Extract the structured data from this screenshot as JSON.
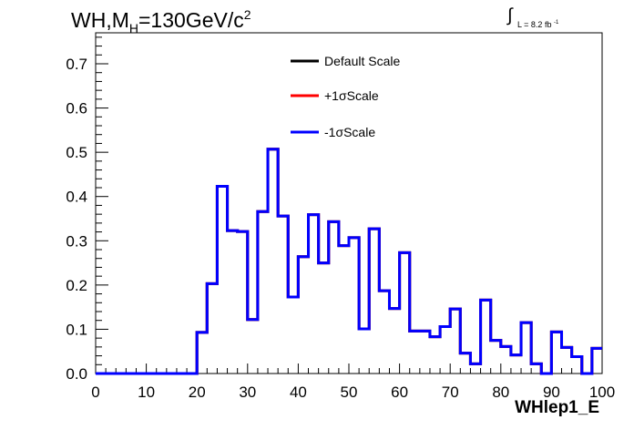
{
  "title": {
    "prefix": "WH,M",
    "sub": "H",
    "main": "=130GeV/c",
    "sup": "2"
  },
  "luminosity": {
    "symbol": "∫",
    "text": "L = 8.2 fb",
    "sup": "-1"
  },
  "legend": [
    {
      "label": "Default Scale",
      "color": "#000000"
    },
    {
      "label": "+1σScale",
      "color": "#ff0000"
    },
    {
      "label": "-1σScale",
      "color": "#0000ff"
    }
  ],
  "chart_data": {
    "type": "line",
    "style": "histogram-step",
    "xlabel": "WHlep1_E",
    "ylabel": "",
    "xlim": [
      0,
      100
    ],
    "ylim": [
      0,
      0.77
    ],
    "x_ticks": [
      0,
      10,
      20,
      30,
      40,
      50,
      60,
      70,
      80,
      90,
      100
    ],
    "y_ticks": [
      0.0,
      0.1,
      0.2,
      0.3,
      0.4,
      0.5,
      0.6,
      0.7
    ],
    "x_tick_labels": [
      "0",
      "10",
      "20",
      "30",
      "40",
      "50",
      "60",
      "70",
      "80",
      "90",
      "100"
    ],
    "y_tick_labels": [
      "0.0",
      "0.1",
      "0.2",
      "0.3",
      "0.4",
      "0.5",
      "0.6",
      "0.7"
    ],
    "bin_edges": [
      0,
      2,
      4,
      6,
      8,
      10,
      12,
      14,
      16,
      18,
      20,
      22,
      24,
      26,
      28,
      30,
      32,
      34,
      36,
      38,
      40,
      42,
      44,
      46,
      48,
      50,
      52,
      54,
      56,
      58,
      60,
      62,
      64,
      66,
      68,
      70,
      72,
      74,
      76,
      78,
      80,
      82,
      84,
      86,
      88,
      90,
      92,
      94,
      96,
      98,
      100
    ],
    "series": [
      {
        "name": "Default Scale",
        "color": "#000000",
        "values": [
          0,
          0,
          0,
          0,
          0,
          0,
          0,
          0,
          0,
          0,
          0.093,
          0.203,
          0.423,
          0.323,
          0.321,
          0.122,
          0.366,
          0.507,
          0.356,
          0.173,
          0.264,
          0.359,
          0.25,
          0.343,
          0.289,
          0.307,
          0.101,
          0.327,
          0.187,
          0.147,
          0.273,
          0.096,
          0.096,
          0.083,
          0.106,
          0.146,
          0.046,
          0.022,
          0.166,
          0.075,
          0.061,
          0.042,
          0.115,
          0.022,
          0.0,
          0.094,
          0.059,
          0.038,
          0.0,
          0.057
        ]
      },
      {
        "name": "+1σScale",
        "color": "#ff0000",
        "values": [
          0,
          0,
          0,
          0,
          0,
          0,
          0,
          0,
          0,
          0,
          0.093,
          0.203,
          0.423,
          0.323,
          0.321,
          0.122,
          0.366,
          0.507,
          0.356,
          0.173,
          0.264,
          0.359,
          0.25,
          0.343,
          0.289,
          0.307,
          0.101,
          0.327,
          0.187,
          0.147,
          0.273,
          0.096,
          0.096,
          0.083,
          0.106,
          0.146,
          0.046,
          0.022,
          0.166,
          0.075,
          0.061,
          0.042,
          0.115,
          0.022,
          0.0,
          0.094,
          0.059,
          0.038,
          0.0,
          0.057
        ]
      },
      {
        "name": "-1σScale",
        "color": "#0000ff",
        "values": [
          0,
          0,
          0,
          0,
          0,
          0,
          0,
          0,
          0,
          0,
          0.093,
          0.203,
          0.423,
          0.323,
          0.321,
          0.122,
          0.366,
          0.507,
          0.356,
          0.173,
          0.264,
          0.359,
          0.25,
          0.343,
          0.289,
          0.307,
          0.101,
          0.327,
          0.187,
          0.147,
          0.273,
          0.096,
          0.096,
          0.083,
          0.106,
          0.146,
          0.046,
          0.022,
          0.166,
          0.075,
          0.061,
          0.042,
          0.115,
          0.022,
          0.0,
          0.094,
          0.059,
          0.038,
          0.0,
          0.057
        ]
      }
    ],
    "legend_position": "top-center",
    "grid": false
  }
}
